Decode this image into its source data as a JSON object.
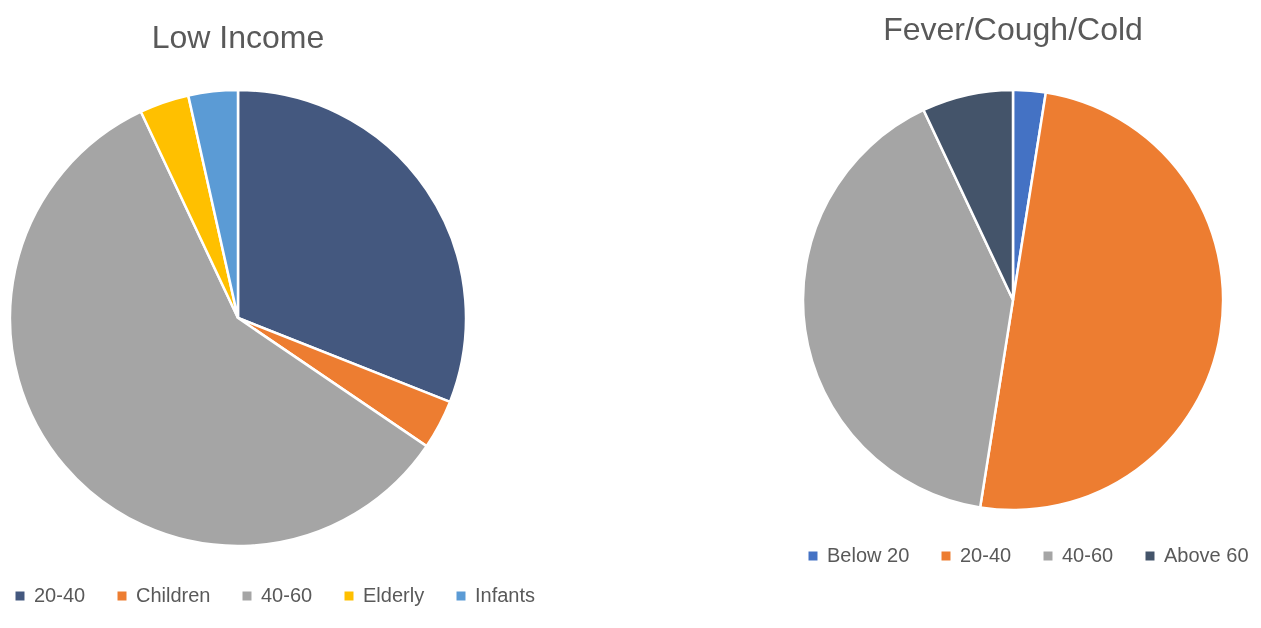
{
  "chart_data": [
    {
      "type": "pie",
      "title": "Low Income",
      "categories": [
        "20-40",
        "Children",
        "40-60",
        "Elderly",
        "Infants"
      ],
      "values": [
        31,
        3.5,
        58.5,
        3.5,
        3.5
      ],
      "colors": [
        "#44587f",
        "#ed7d31",
        "#a5a5a5",
        "#ffc000",
        "#5b9bd5"
      ],
      "legend": "bottom"
    },
    {
      "type": "pie",
      "title": "Fever/Cough/Cold",
      "categories": [
        "Below 20",
        "20-40",
        "40-60",
        "Above 60"
      ],
      "values": [
        2.5,
        50,
        40.5,
        7
      ],
      "colors": [
        "#4472c4",
        "#ed7d31",
        "#a5a5a5",
        "#44546a"
      ],
      "legend": "bottom"
    }
  ]
}
